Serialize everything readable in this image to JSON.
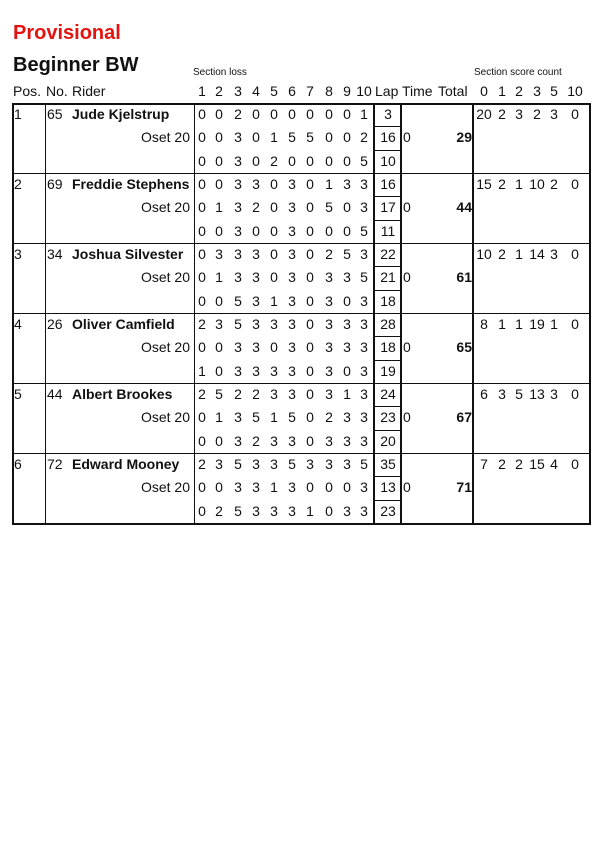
{
  "status": "Provisional",
  "class_title": "Beginner BW",
  "headers": {
    "section_loss": "Section loss",
    "section_score_count": "Section score count",
    "pos": "Pos.",
    "no": "No.",
    "rider": "Rider",
    "sections": [
      "1",
      "2",
      "3",
      "4",
      "5",
      "6",
      "7",
      "8",
      "9",
      "10"
    ],
    "lap": "Lap",
    "time": "Time",
    "total": "Total",
    "counts": [
      "0",
      "1",
      "2",
      "3",
      "5",
      "10"
    ]
  },
  "riders": [
    {
      "pos": "1",
      "no": "65",
      "name": "Jude Kjelstrup",
      "bike": "Oset 20",
      "laps": [
        [
          "0",
          "0",
          "2",
          "0",
          "0",
          "0",
          "0",
          "0",
          "0",
          "1"
        ],
        [
          "0",
          "0",
          "3",
          "0",
          "1",
          "5",
          "5",
          "0",
          "0",
          "2"
        ],
        [
          "0",
          "0",
          "3",
          "0",
          "2",
          "0",
          "0",
          "0",
          "0",
          "5"
        ]
      ],
      "lap_totals": [
        "3",
        "16",
        "10"
      ],
      "time": "0",
      "total": "29",
      "counts": [
        "20",
        "2",
        "3",
        "2",
        "3",
        "0"
      ]
    },
    {
      "pos": "2",
      "no": "69",
      "name": "Freddie Stephens",
      "bike": "Oset 20",
      "laps": [
        [
          "0",
          "0",
          "3",
          "3",
          "0",
          "3",
          "0",
          "1",
          "3",
          "3"
        ],
        [
          "0",
          "1",
          "3",
          "2",
          "0",
          "3",
          "0",
          "5",
          "0",
          "3"
        ],
        [
          "0",
          "0",
          "3",
          "0",
          "0",
          "3",
          "0",
          "0",
          "0",
          "5"
        ]
      ],
      "lap_totals": [
        "16",
        "17",
        "11"
      ],
      "time": "0",
      "total": "44",
      "counts": [
        "15",
        "2",
        "1",
        "10",
        "2",
        "0"
      ]
    },
    {
      "pos": "3",
      "no": "34",
      "name": "Joshua Silvester",
      "bike": "Oset 20",
      "laps": [
        [
          "0",
          "3",
          "3",
          "3",
          "0",
          "3",
          "0",
          "2",
          "5",
          "3"
        ],
        [
          "0",
          "1",
          "3",
          "3",
          "0",
          "3",
          "0",
          "3",
          "3",
          "5"
        ],
        [
          "0",
          "0",
          "5",
          "3",
          "1",
          "3",
          "0",
          "3",
          "0",
          "3"
        ]
      ],
      "lap_totals": [
        "22",
        "21",
        "18"
      ],
      "time": "0",
      "total": "61",
      "counts": [
        "10",
        "2",
        "1",
        "14",
        "3",
        "0"
      ]
    },
    {
      "pos": "4",
      "no": "26",
      "name": "Oliver Camfield",
      "bike": "Oset 20",
      "laps": [
        [
          "2",
          "3",
          "5",
          "3",
          "3",
          "3",
          "0",
          "3",
          "3",
          "3"
        ],
        [
          "0",
          "0",
          "3",
          "3",
          "0",
          "3",
          "0",
          "3",
          "3",
          "3"
        ],
        [
          "1",
          "0",
          "3",
          "3",
          "3",
          "3",
          "0",
          "3",
          "0",
          "3"
        ]
      ],
      "lap_totals": [
        "28",
        "18",
        "19"
      ],
      "time": "0",
      "total": "65",
      "counts": [
        "8",
        "1",
        "1",
        "19",
        "1",
        "0"
      ]
    },
    {
      "pos": "5",
      "no": "44",
      "name": "Albert Brookes",
      "bike": "Oset 20",
      "laps": [
        [
          "2",
          "5",
          "2",
          "2",
          "3",
          "3",
          "0",
          "3",
          "1",
          "3"
        ],
        [
          "0",
          "1",
          "3",
          "5",
          "1",
          "5",
          "0",
          "2",
          "3",
          "3"
        ],
        [
          "0",
          "0",
          "3",
          "2",
          "3",
          "3",
          "0",
          "3",
          "3",
          "3"
        ]
      ],
      "lap_totals": [
        "24",
        "23",
        "20"
      ],
      "time": "0",
      "total": "67",
      "counts": [
        "6",
        "3",
        "5",
        "13",
        "3",
        "0"
      ]
    },
    {
      "pos": "6",
      "no": "72",
      "name": "Edward Mooney",
      "bike": "Oset 20",
      "laps": [
        [
          "2",
          "3",
          "5",
          "3",
          "3",
          "5",
          "3",
          "3",
          "3",
          "5"
        ],
        [
          "0",
          "0",
          "3",
          "3",
          "1",
          "3",
          "0",
          "0",
          "0",
          "3"
        ],
        [
          "0",
          "2",
          "5",
          "3",
          "3",
          "3",
          "1",
          "0",
          "3",
          "3"
        ]
      ],
      "lap_totals": [
        "35",
        "13",
        "23"
      ],
      "time": "0",
      "total": "71",
      "counts": [
        "7",
        "2",
        "2",
        "15",
        "4",
        "0"
      ]
    }
  ]
}
